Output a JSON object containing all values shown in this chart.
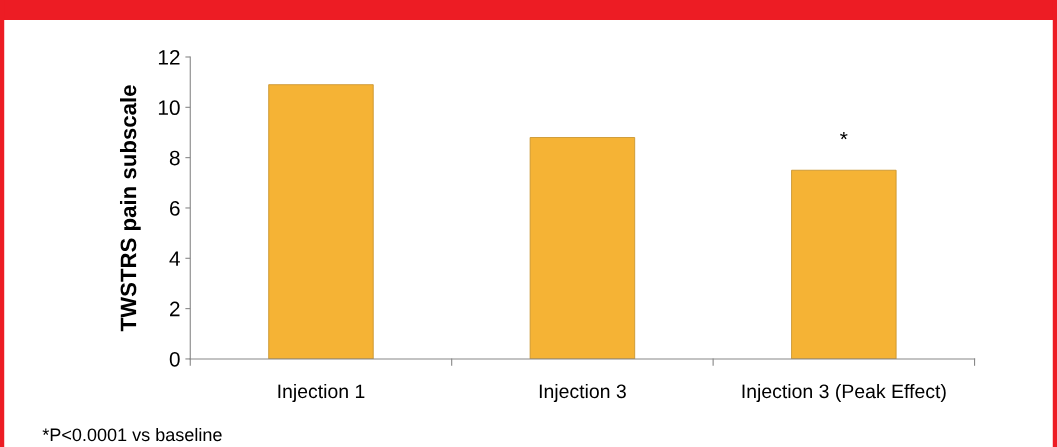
{
  "chart_data": {
    "type": "bar",
    "ylabel": "TWSTRS pain subscale",
    "categories": [
      "Injection 1",
      "Injection 3",
      "Injection 3 (Peak Effect)"
    ],
    "values": [
      10.9,
      8.8,
      7.5
    ],
    "color": "#f5b335",
    "ylim": [
      0,
      12
    ],
    "yticks": [
      0,
      2,
      4,
      6,
      8,
      10,
      12
    ],
    "grid": false,
    "legend": false,
    "annotations": [
      "*",
      "*P<0.0001 vs baseline"
    ]
  }
}
